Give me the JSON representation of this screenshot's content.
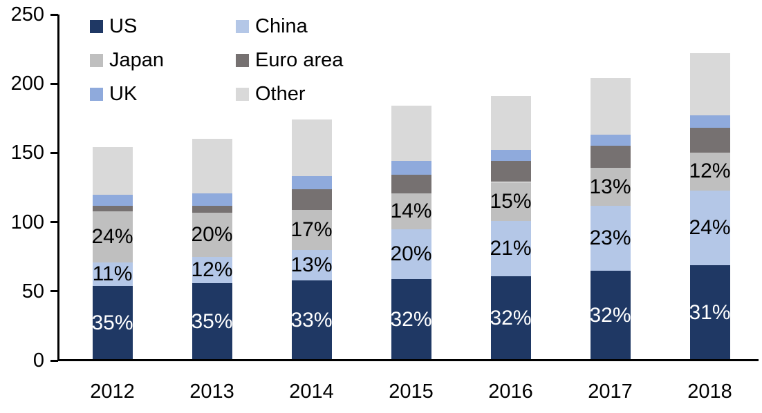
{
  "chart_data": {
    "type": "bar",
    "variant": "stacked",
    "title": "",
    "categories": [
      "2012",
      "2013",
      "2014",
      "2015",
      "2016",
      "2017",
      "2018"
    ],
    "series": [
      {
        "name": "US",
        "color": "#1F3864",
        "values": [
          54,
          56,
          58,
          59,
          61,
          65,
          69
        ],
        "segment_labels": [
          "35%",
          "35%",
          "33%",
          "32%",
          "32%",
          "32%",
          "31%"
        ],
        "label_color": "#FFFFFF"
      },
      {
        "name": "China",
        "color": "#B4C7E7",
        "values": [
          17,
          19,
          22,
          36,
          40,
          47,
          54
        ],
        "segment_labels": [
          "11%",
          "12%",
          "13%",
          "20%",
          "21%",
          "23%",
          "24%"
        ],
        "label_color": "#000000"
      },
      {
        "name": "Japan",
        "color": "#BFBFBF",
        "values": [
          37,
          32,
          29,
          26,
          28,
          27,
          27
        ],
        "segment_labels": [
          "24%",
          "20%",
          "17%",
          "14%",
          "15%",
          "13%",
          "12%"
        ],
        "label_color": "#000000"
      },
      {
        "name": "Euro area",
        "color": "#767171",
        "values": [
          4,
          5,
          15,
          13,
          15,
          16,
          18
        ],
        "segment_labels": null,
        "label_color": null
      },
      {
        "name": "UK",
        "color": "#8FAADC",
        "values": [
          8,
          9,
          9,
          10,
          8,
          8,
          9
        ],
        "segment_labels": null,
        "label_color": null
      },
      {
        "name": "Other",
        "color": "#D9D9D9",
        "values": [
          34,
          39,
          41,
          40,
          39,
          41,
          45
        ],
        "segment_labels": null,
        "label_color": null
      }
    ],
    "stack_order_bottom_to_top": [
      "US",
      "China",
      "Japan",
      "Euro area",
      "UK",
      "Other"
    ],
    "bar_totals": [
      154,
      160,
      174,
      184,
      191,
      204,
      222
    ],
    "y_axis": {
      "min": 0,
      "max": 250,
      "step": 50,
      "tick_labels": [
        "0",
        "50",
        "100",
        "150",
        "200",
        "250"
      ]
    },
    "xlabel": "",
    "ylabel": "",
    "grid": false,
    "legend": {
      "position": "top-left",
      "columns": 2,
      "entries": [
        "US",
        "China",
        "Japan",
        "Euro area",
        "UK",
        "Other"
      ]
    }
  }
}
